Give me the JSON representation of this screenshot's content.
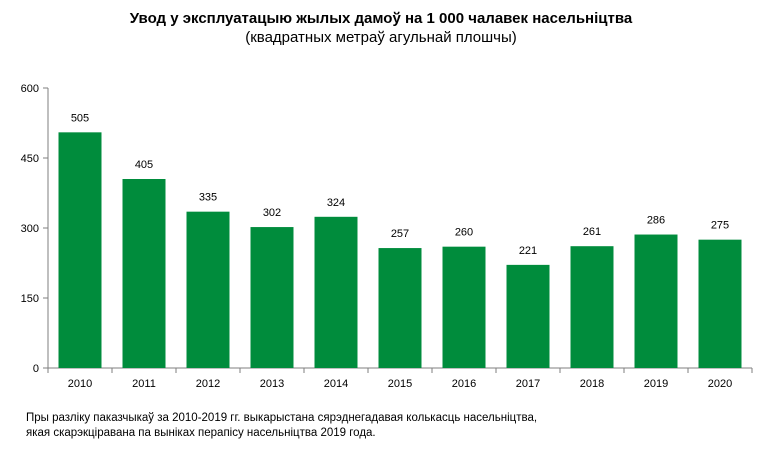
{
  "chart_data": {
    "type": "bar",
    "title": "Увод у эксплуатацыю жылых дамоў на 1 000 чалавек насельніцтва",
    "subtitle": "(квадратных метраў агульнай плошчы)",
    "categories": [
      "2010",
      "2011",
      "2012",
      "2013",
      "2014",
      "2015",
      "2016",
      "2017",
      "2018",
      "2019",
      "2020"
    ],
    "values": [
      505,
      405,
      335,
      302,
      324,
      257,
      260,
      221,
      261,
      286,
      275
    ],
    "ylim": [
      0,
      600
    ],
    "yticks": [
      0,
      150,
      300,
      450,
      600
    ],
    "xlabel": "",
    "ylabel": "",
    "bar_color": "#008c3c",
    "grid": false
  },
  "note": {
    "line1": "Пры разліку паказчыкаў за 2010-2019 гг. выкарыстана сярэднегадавая колькасць насельніцтва,",
    "line2": "якая скарэкціравана па выніках перапісу насельніцтва 2019 года."
  }
}
